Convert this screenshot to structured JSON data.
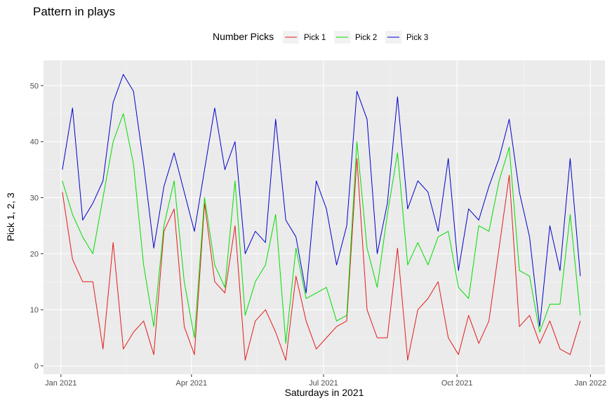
{
  "chart_data": {
    "type": "line",
    "title": "Pattern in plays",
    "xlabel": "Saturdays in 2021",
    "ylabel": "Pick 1, 2, 3",
    "legend": {
      "title": "Number Picks",
      "position": "top",
      "entries": [
        "Pick 1",
        "Pick 2",
        "Pick 3"
      ]
    },
    "grid": true,
    "ylim": [
      -1.5,
      54.5
    ],
    "y_ticks": [
      0,
      10,
      20,
      30,
      40,
      50
    ],
    "xlim": [
      "2020-12-20",
      "2022-01-11"
    ],
    "x_ticks": [
      {
        "date": "2021-01-01",
        "label": "Jan 2021"
      },
      {
        "date": "2021-04-01",
        "label": "Apr 2021"
      },
      {
        "date": "2021-07-01",
        "label": "Jul 2021"
      },
      {
        "date": "2021-10-01",
        "label": "Oct 2021"
      },
      {
        "date": "2022-01-01",
        "label": "Jan 2022"
      }
    ],
    "x": [
      "2021-01-02",
      "2021-01-09",
      "2021-01-16",
      "2021-01-23",
      "2021-01-30",
      "2021-02-06",
      "2021-02-13",
      "2021-02-20",
      "2021-02-27",
      "2021-03-06",
      "2021-03-13",
      "2021-03-20",
      "2021-03-27",
      "2021-04-03",
      "2021-04-10",
      "2021-04-17",
      "2021-04-24",
      "2021-05-01",
      "2021-05-08",
      "2021-05-15",
      "2021-05-22",
      "2021-05-29",
      "2021-06-05",
      "2021-06-12",
      "2021-06-19",
      "2021-06-26",
      "2021-07-03",
      "2021-07-10",
      "2021-07-17",
      "2021-07-24",
      "2021-07-31",
      "2021-08-07",
      "2021-08-14",
      "2021-08-21",
      "2021-08-28",
      "2021-09-04",
      "2021-09-11",
      "2021-09-18",
      "2021-09-25",
      "2021-10-02",
      "2021-10-09",
      "2021-10-16",
      "2021-10-23",
      "2021-10-30",
      "2021-11-06",
      "2021-11-13",
      "2021-11-20",
      "2021-11-27",
      "2021-12-04",
      "2021-12-11",
      "2021-12-18",
      "2021-12-25"
    ],
    "series": [
      {
        "name": "Pick 1",
        "color": "#e41a1c",
        "values": [
          31,
          19,
          15,
          15,
          3,
          22,
          3,
          6,
          8,
          2,
          24,
          28,
          7,
          2,
          29,
          15,
          13,
          25,
          1,
          8,
          10,
          6,
          1,
          16,
          8,
          3,
          5,
          7,
          8,
          37,
          10,
          5,
          5,
          21,
          1,
          10,
          12,
          15,
          5,
          2,
          9,
          4,
          8,
          21,
          34,
          7,
          9,
          4,
          8,
          3,
          2,
          8
        ]
      },
      {
        "name": "Pick 2",
        "color": "#00dd00",
        "values": [
          33,
          27,
          23,
          20,
          30,
          40,
          45,
          36,
          18,
          7,
          25,
          33,
          15,
          5,
          30,
          18,
          14,
          33,
          9,
          15,
          18,
          27,
          4,
          21,
          12,
          13,
          14,
          8,
          9,
          40,
          21,
          14,
          27,
          38,
          18,
          22,
          18,
          23,
          24,
          14,
          12,
          25,
          24,
          33,
          39,
          17,
          16,
          6,
          11,
          11,
          27,
          9
        ]
      },
      {
        "name": "Pick 3",
        "color": "#0000cc",
        "values": [
          35,
          46,
          26,
          29,
          33,
          47,
          52,
          49,
          36,
          21,
          32,
          38,
          31,
          24,
          35,
          46,
          35,
          40,
          20,
          24,
          22,
          44,
          26,
          23,
          13,
          33,
          28,
          18,
          25,
          49,
          44,
          20,
          29,
          48,
          28,
          33,
          31,
          24,
          37,
          17,
          28,
          26,
          32,
          37,
          44,
          31,
          23,
          7,
          25,
          17,
          37,
          16
        ]
      }
    ]
  }
}
